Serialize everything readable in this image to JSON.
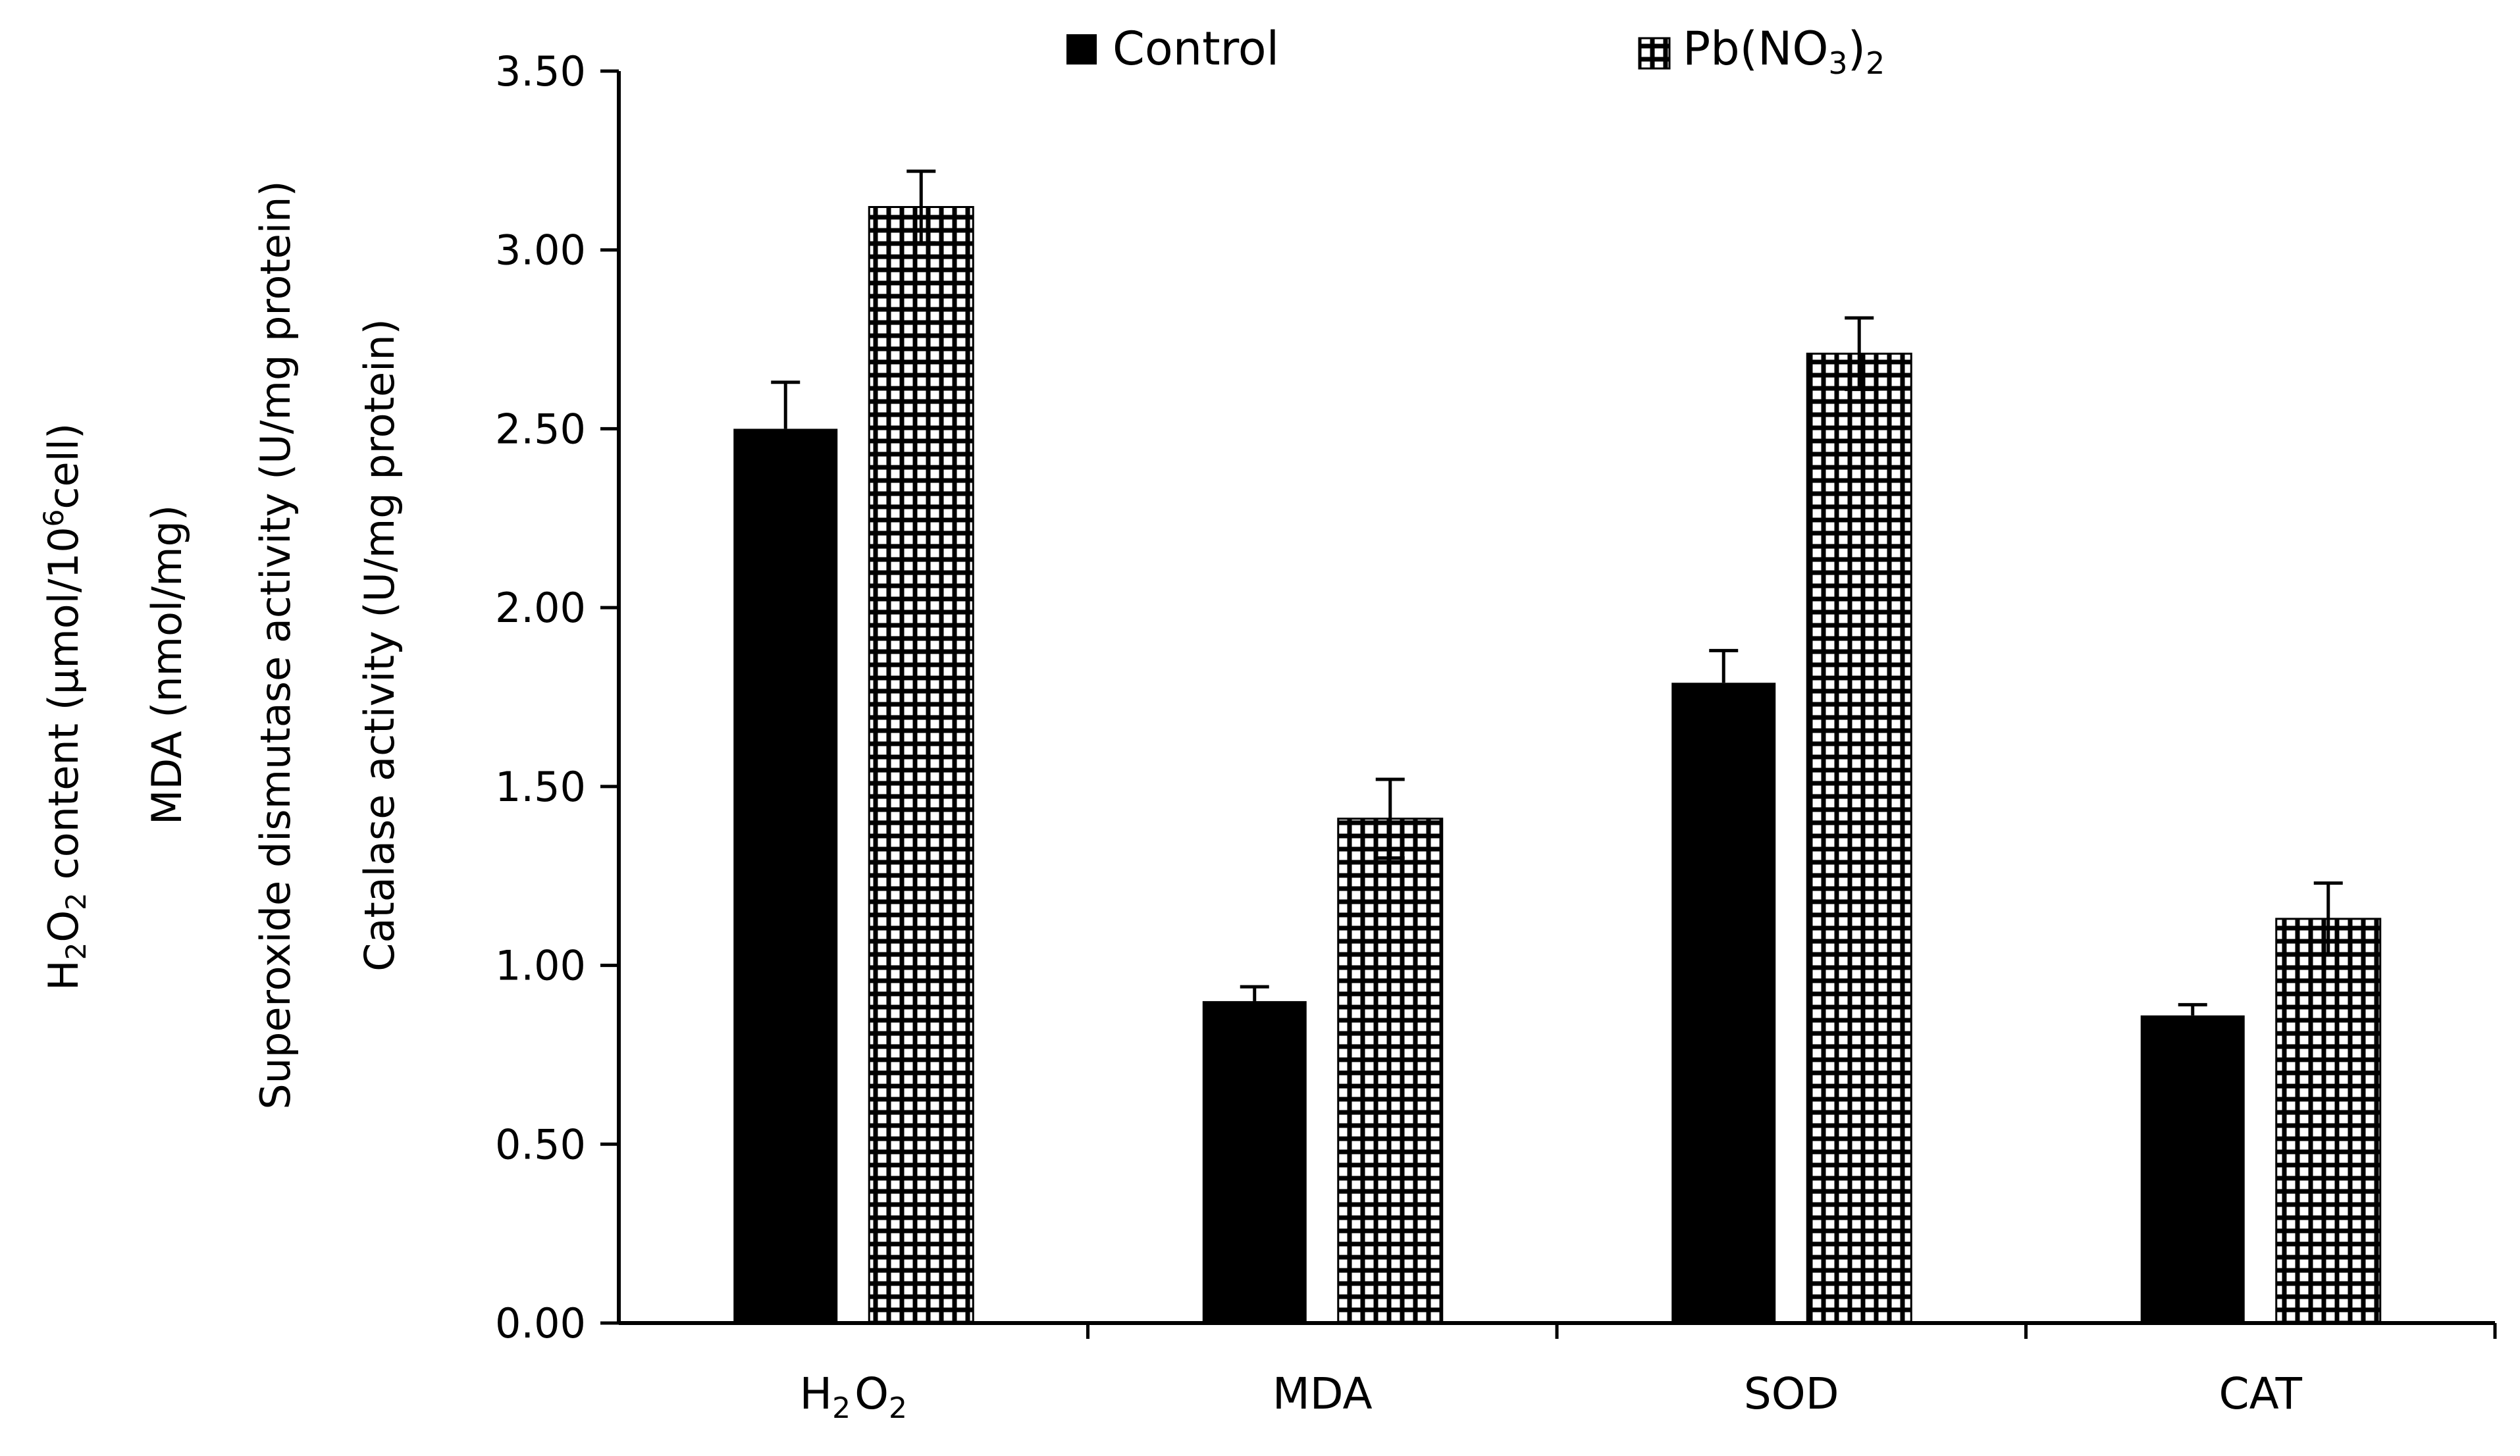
{
  "chart_data": {
    "type": "bar",
    "categories": [
      "H2O2",
      "MDA",
      "SOD",
      "CAT"
    ],
    "category_labels": [
      {
        "main": "H",
        "sub1": "2",
        "mid": "O",
        "sub2": "2"
      },
      {
        "main": "MDA"
      },
      {
        "main": "SOD"
      },
      {
        "main": "CAT"
      }
    ],
    "series": [
      {
        "name": "Control",
        "values": [
          2.5,
          0.9,
          1.79,
          0.86
        ],
        "errors": [
          0.13,
          0.04,
          0.09,
          0.03
        ],
        "fill": "#000000",
        "pattern": "solid"
      },
      {
        "name": "Pb(NO3)2",
        "values": [
          3.12,
          1.41,
          2.71,
          1.13
        ],
        "errors": [
          0.1,
          0.11,
          0.1,
          0.1
        ],
        "fill": "#000000",
        "pattern": "grid"
      }
    ],
    "legend": {
      "control_label": "Control",
      "treatment_prefix": "Pb(NO",
      "treatment_sub1": "3",
      "treatment_mid": ")",
      "treatment_sub2": "2",
      "position": "top-center"
    },
    "ylabel_lines": [
      {
        "prefix": "H",
        "sub": "2",
        "mid": "O",
        "sub2": "2",
        "rest": " content (µmol/10",
        "sup": "6",
        "tail": "cell)"
      },
      {
        "text": "MDA (nmol/mg)"
      },
      {
        "text": "Superoxide dismutase activity (U/mg protein)"
      },
      {
        "text": "Catalase activity (U/mg protein)"
      }
    ],
    "ylim": [
      0,
      3.5
    ],
    "yticks": [
      "0.00",
      "0.50",
      "1.00",
      "1.50",
      "2.00",
      "2.50",
      "3.00",
      "3.50"
    ],
    "grid": false,
    "colors": {
      "axis": "#000000",
      "background": "#ffffff"
    }
  }
}
